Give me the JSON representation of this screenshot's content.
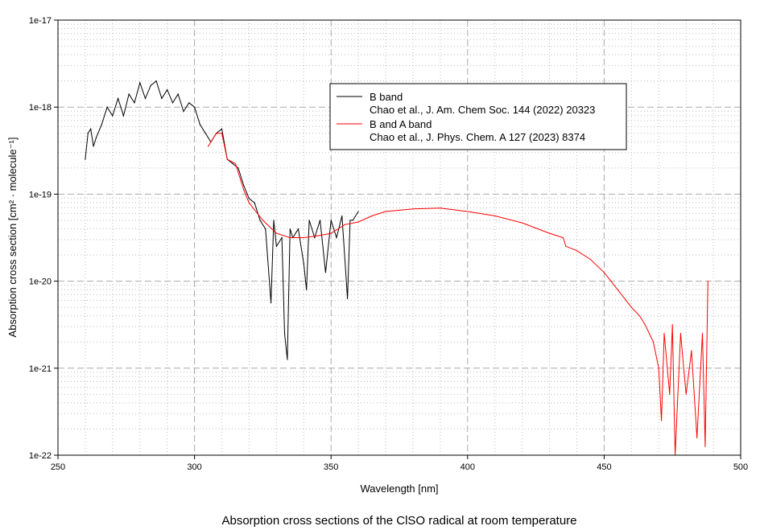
{
  "chart_data": {
    "type": "line",
    "title": "Absorption cross sections of the ClSO radical at room temperature",
    "xlabel": "Wavelength [nm]",
    "ylabel": "Absorption cross section [cm² · molecule⁻¹]",
    "xlim": [
      250,
      500
    ],
    "ylim": [
      1e-22,
      1e-17
    ],
    "yscale": "log",
    "grid": true,
    "x_ticks": [
      "250",
      "300",
      "350",
      "400",
      "450",
      "500"
    ],
    "y_ticks": [
      "1e-22",
      "1e-21",
      "1e-20",
      "1e-19",
      "1e-18",
      "1e-17"
    ],
    "legend_placement": "top-center",
    "series": [
      {
        "name": "B band",
        "reference": "Chao et al., J. Am. Chem Soc. 144 (2022) 20323",
        "color": "#000000",
        "x": [
          260,
          261,
          262,
          263,
          264,
          266,
          268,
          270,
          272,
          274,
          276,
          278,
          280,
          282,
          284,
          286,
          288,
          290,
          292,
          294,
          296,
          298,
          300,
          302,
          304,
          306,
          308,
          310,
          312,
          314,
          316,
          318,
          320,
          322,
          324,
          326,
          328,
          329,
          330,
          332,
          333,
          334,
          335,
          336,
          338,
          340,
          341,
          342,
          344,
          346,
          348,
          350,
          352,
          354,
          356,
          357,
          358,
          360
        ],
        "log10_y": [
          -18.6,
          -18.3,
          -18.25,
          -18.45,
          -18.35,
          -18.2,
          -18.0,
          -18.1,
          -17.9,
          -18.1,
          -17.85,
          -17.95,
          -17.72,
          -17.9,
          -17.75,
          -17.7,
          -17.9,
          -17.8,
          -17.95,
          -17.85,
          -18.05,
          -17.95,
          -18.0,
          -18.2,
          -18.3,
          -18.4,
          -18.3,
          -18.25,
          -18.6,
          -18.65,
          -18.7,
          -18.9,
          -19.05,
          -19.1,
          -19.3,
          -19.4,
          -20.25,
          -19.3,
          -19.6,
          -19.5,
          -20.6,
          -20.9,
          -19.4,
          -19.5,
          -19.4,
          -19.8,
          -20.1,
          -19.3,
          -19.5,
          -19.3,
          -19.9,
          -19.3,
          -19.5,
          -19.25,
          -20.2,
          -19.3,
          -19.3,
          -19.2
        ]
      },
      {
        "name": "B and A band",
        "reference": "Chao et al., J. Phys. Chem. A 127 (2023) 8374",
        "color": "#ff0000",
        "x": [
          305,
          308,
          310,
          312,
          315,
          318,
          320,
          325,
          330,
          335,
          340,
          345,
          350,
          355,
          360,
          365,
          370,
          380,
          390,
          400,
          410,
          420,
          430,
          435,
          436,
          440,
          445,
          450,
          455,
          460,
          463,
          465,
          468,
          470,
          471,
          472,
          474,
          475,
          476,
          478,
          480,
          482,
          484,
          486,
          487,
          488
        ],
        "log10_y": [
          -18.45,
          -18.3,
          -18.3,
          -18.6,
          -18.65,
          -18.95,
          -19.1,
          -19.3,
          -19.45,
          -19.5,
          -19.5,
          -19.48,
          -19.45,
          -19.35,
          -19.32,
          -19.25,
          -19.2,
          -19.17,
          -19.16,
          -19.2,
          -19.25,
          -19.33,
          -19.45,
          -19.5,
          -19.6,
          -19.65,
          -19.75,
          -19.9,
          -20.1,
          -20.3,
          -20.4,
          -20.5,
          -20.7,
          -21.0,
          -21.6,
          -20.6,
          -21.3,
          -20.5,
          -22.0,
          -20.6,
          -21.3,
          -20.8,
          -21.8,
          -20.6,
          -21.9,
          -20.0
        ]
      }
    ]
  }
}
